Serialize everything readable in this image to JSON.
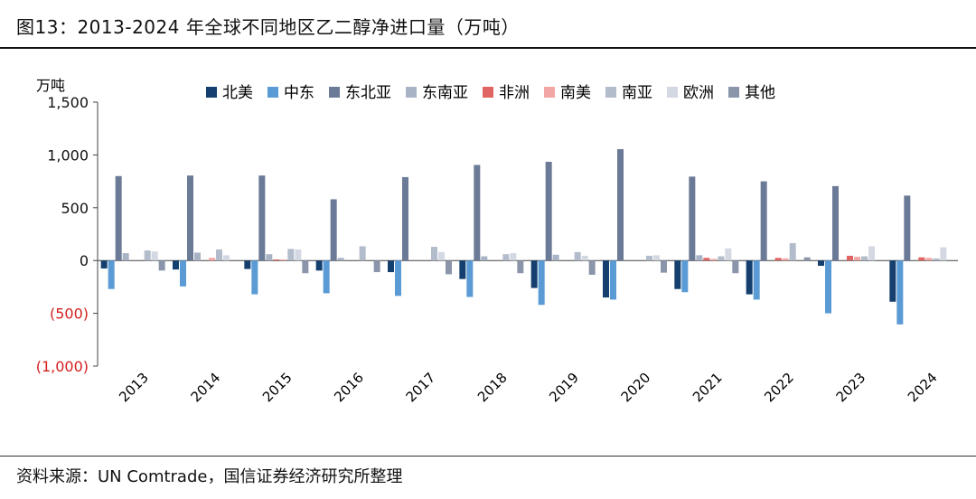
{
  "title": "图13：2013-2024 年全球不同地区乙二醇净进口量（万吨）",
  "source": "资料来源：UN Comtrade，国信证券经济研究所整理",
  "chart_data": {
    "type": "bar",
    "unit_label": "万吨",
    "categories": [
      "2013",
      "2014",
      "2015",
      "2016",
      "2017",
      "2018",
      "2019",
      "2020",
      "2021",
      "2022",
      "2023",
      "2024"
    ],
    "ylim": [
      -1000,
      1500
    ],
    "yticks": [
      -1000,
      -500,
      0,
      500,
      1000,
      1500
    ],
    "ytick_labels": [
      "(1,000)",
      "(500)",
      "0",
      "500",
      "1,000",
      "1,500"
    ],
    "negative_tick_color": "#d42020",
    "grid": false,
    "legend_position": "top",
    "series": [
      {
        "name": "北美",
        "color": "#143f6e",
        "values": [
          -75,
          -85,
          -80,
          -95,
          -110,
          -175,
          -260,
          -350,
          -270,
          -320,
          -50,
          -390
        ]
      },
      {
        "name": "中东",
        "color": "#5b9bd5",
        "values": [
          -270,
          -245,
          -320,
          -310,
          -335,
          -345,
          -420,
          -370,
          -300,
          -370,
          -500,
          -605
        ]
      },
      {
        "name": "东北亚",
        "color": "#6b7a96",
        "values": [
          800,
          805,
          805,
          580,
          790,
          905,
          935,
          1055,
          795,
          750,
          705,
          615
        ]
      },
      {
        "name": "东南亚",
        "color": "#a8b4c6",
        "values": [
          70,
          75,
          60,
          25,
          0,
          40,
          55,
          0,
          50,
          0,
          0,
          0
        ]
      },
      {
        "name": "非洲",
        "color": "#e06461",
        "values": [
          0,
          0,
          10,
          0,
          0,
          0,
          0,
          0,
          25,
          25,
          45,
          30
        ]
      },
      {
        "name": "南美",
        "color": "#f2a7a4",
        "values": [
          0,
          25,
          10,
          0,
          0,
          0,
          0,
          0,
          15,
          20,
          35,
          25
        ]
      },
      {
        "name": "南亚",
        "color": "#b3bccb",
        "values": [
          95,
          105,
          110,
          135,
          130,
          60,
          80,
          45,
          40,
          165,
          40,
          20
        ]
      },
      {
        "name": "欧洲",
        "color": "#d3d8e3",
        "values": [
          85,
          50,
          105,
          0,
          80,
          70,
          45,
          50,
          115,
          0,
          135,
          125
        ]
      },
      {
        "name": "其他",
        "color": "#8b95aa",
        "values": [
          -95,
          0,
          -120,
          -110,
          -130,
          -120,
          -135,
          -115,
          -120,
          30,
          0,
          0
        ]
      }
    ]
  }
}
